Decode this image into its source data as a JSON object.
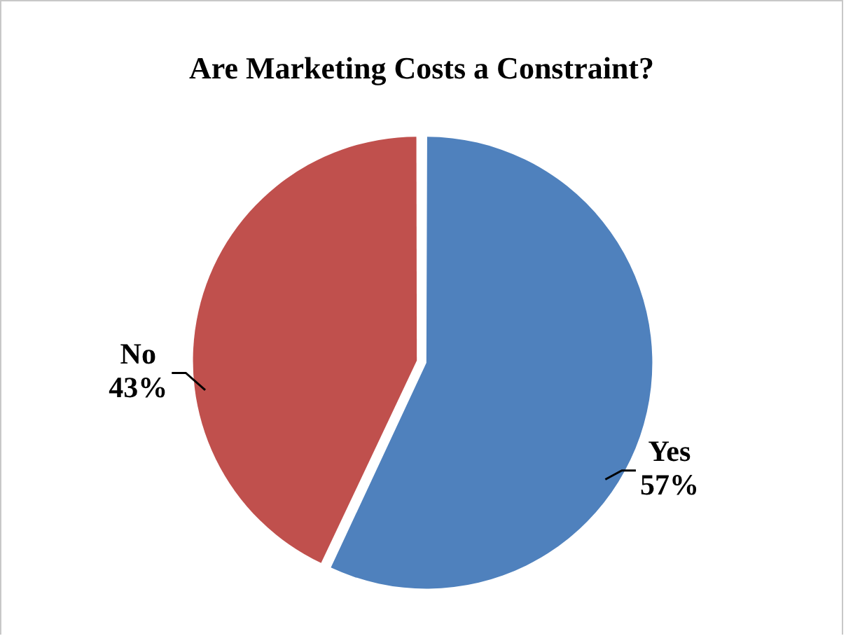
{
  "chart_data": {
    "type": "pie",
    "title": "Are Marketing Costs a Constraint?",
    "categories": [
      "Yes",
      "No"
    ],
    "values": [
      57,
      43
    ],
    "colors": [
      "#4f81bd",
      "#c0504d"
    ],
    "value_labels": [
      "57%",
      "43%"
    ],
    "legend": false
  }
}
